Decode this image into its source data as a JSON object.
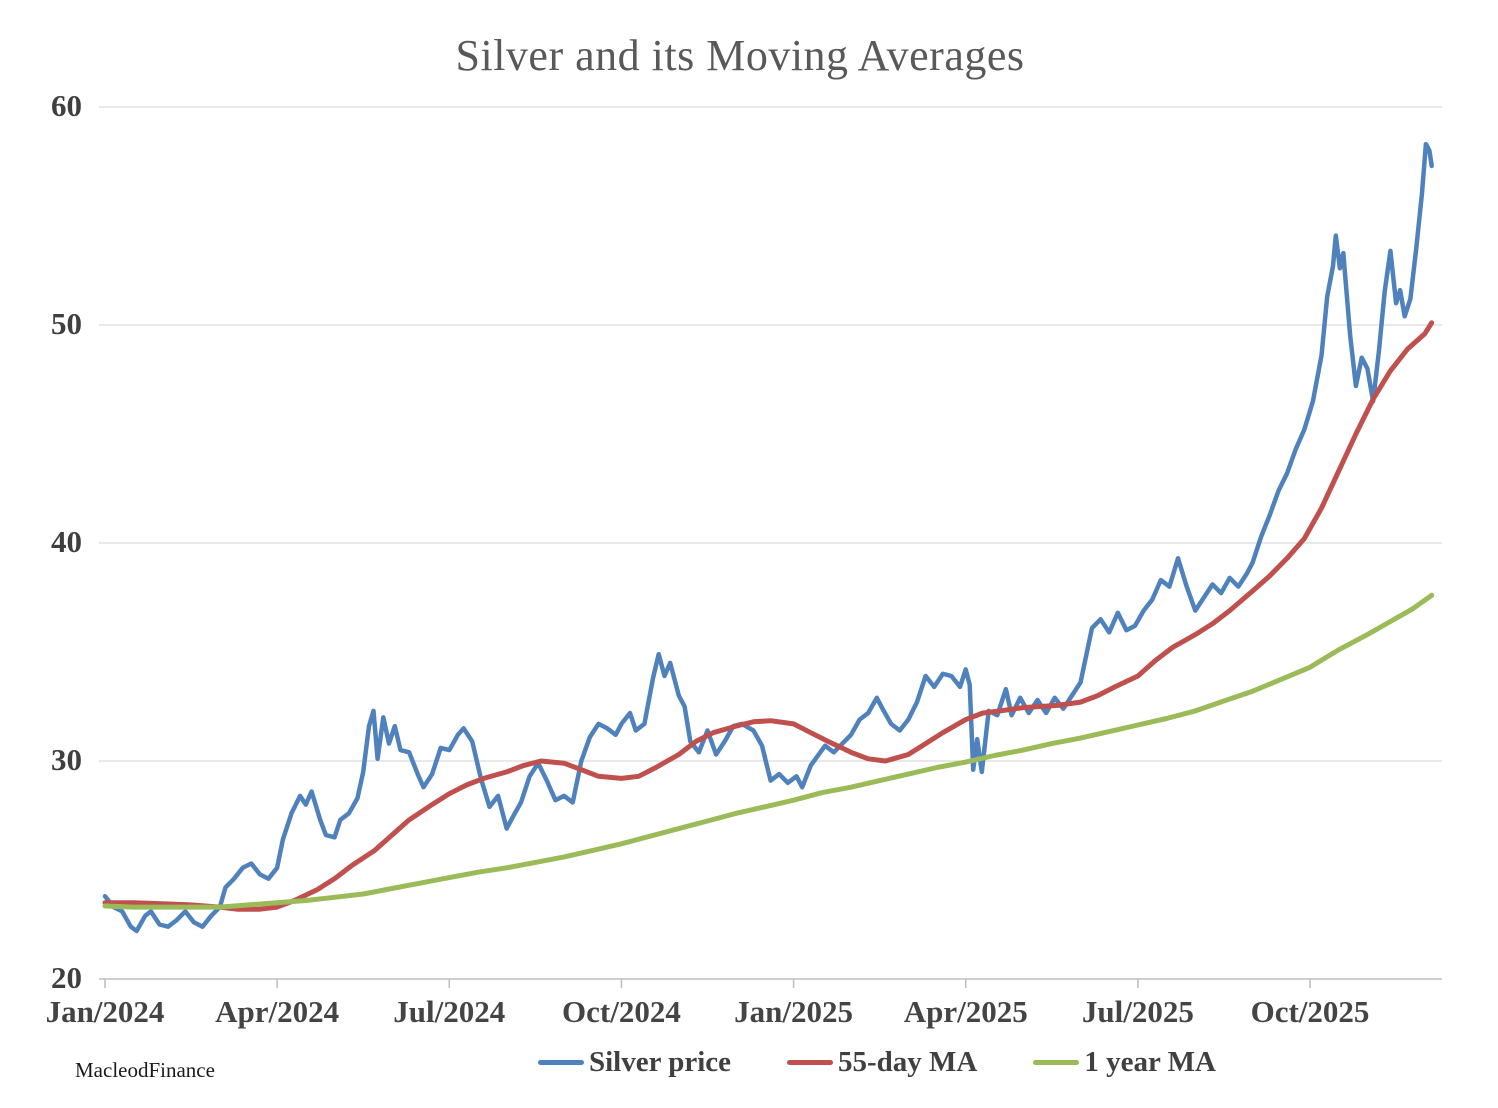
{
  "chart": {
    "title": "Silver and its Moving Averages",
    "watermark": "MacleodFinance",
    "colors": {
      "silver_price": "#4f81bd",
      "ma_55_day": "#c0504d",
      "ma_1_year": "#9bbb59",
      "gridline": "#d9d9d9",
      "axis_line": "#bfbfbf",
      "title_text": "#595959",
      "tick_text": "#3f3f3f"
    }
  },
  "chart_data": {
    "type": "line",
    "title": "Silver and its Moving Averages",
    "xlabel": "",
    "ylabel": "",
    "x_unit": "months since Jan 2024",
    "xlim": [
      0,
      23.3
    ],
    "ylim": [
      20,
      60
    ],
    "y_ticks": [
      20,
      30,
      40,
      50,
      60
    ],
    "x_ticks": [
      {
        "pos": 0,
        "label": "Jan/2024"
      },
      {
        "pos": 3,
        "label": "Apr/2024"
      },
      {
        "pos": 6,
        "label": "Jul/2024"
      },
      {
        "pos": 9,
        "label": "Oct/2024"
      },
      {
        "pos": 12,
        "label": "Jan/2025"
      },
      {
        "pos": 15,
        "label": "Apr/2025"
      },
      {
        "pos": 18,
        "label": "Jul/2025"
      },
      {
        "pos": 21,
        "label": "Oct/2025"
      }
    ],
    "grid": "horizontal-only",
    "legend_position": "bottom-center",
    "series": [
      {
        "name": "Silver price",
        "color": "#4f81bd",
        "width": 4.5,
        "points": [
          [
            0.0,
            23.8
          ],
          [
            0.15,
            23.3
          ],
          [
            0.3,
            23.1
          ],
          [
            0.45,
            22.4
          ],
          [
            0.55,
            22.2
          ],
          [
            0.7,
            22.9
          ],
          [
            0.8,
            23.1
          ],
          [
            0.95,
            22.5
          ],
          [
            1.1,
            22.4
          ],
          [
            1.25,
            22.7
          ],
          [
            1.4,
            23.1
          ],
          [
            1.55,
            22.6
          ],
          [
            1.7,
            22.4
          ],
          [
            1.85,
            22.9
          ],
          [
            2.0,
            23.3
          ],
          [
            2.1,
            24.2
          ],
          [
            2.25,
            24.6
          ],
          [
            2.4,
            25.1
          ],
          [
            2.55,
            25.3
          ],
          [
            2.7,
            24.8
          ],
          [
            2.85,
            24.6
          ],
          [
            3.0,
            25.1
          ],
          [
            3.1,
            26.4
          ],
          [
            3.25,
            27.6
          ],
          [
            3.4,
            28.4
          ],
          [
            3.5,
            28.0
          ],
          [
            3.6,
            28.6
          ],
          [
            3.75,
            27.3
          ],
          [
            3.85,
            26.6
          ],
          [
            4.0,
            26.5
          ],
          [
            4.1,
            27.3
          ],
          [
            4.25,
            27.6
          ],
          [
            4.4,
            28.3
          ],
          [
            4.5,
            29.5
          ],
          [
            4.6,
            31.6
          ],
          [
            4.68,
            32.3
          ],
          [
            4.75,
            30.1
          ],
          [
            4.85,
            32.0
          ],
          [
            4.95,
            30.8
          ],
          [
            5.05,
            31.6
          ],
          [
            5.15,
            30.5
          ],
          [
            5.3,
            30.4
          ],
          [
            5.45,
            29.4
          ],
          [
            5.55,
            28.8
          ],
          [
            5.7,
            29.4
          ],
          [
            5.85,
            30.6
          ],
          [
            6.0,
            30.5
          ],
          [
            6.15,
            31.2
          ],
          [
            6.25,
            31.5
          ],
          [
            6.4,
            30.9
          ],
          [
            6.55,
            29.2
          ],
          [
            6.7,
            27.9
          ],
          [
            6.85,
            28.4
          ],
          [
            7.0,
            26.9
          ],
          [
            7.1,
            27.4
          ],
          [
            7.25,
            28.1
          ],
          [
            7.4,
            29.3
          ],
          [
            7.55,
            29.9
          ],
          [
            7.7,
            29.1
          ],
          [
            7.85,
            28.2
          ],
          [
            8.0,
            28.4
          ],
          [
            8.15,
            28.1
          ],
          [
            8.3,
            30.0
          ],
          [
            8.45,
            31.1
          ],
          [
            8.6,
            31.7
          ],
          [
            8.75,
            31.5
          ],
          [
            8.9,
            31.2
          ],
          [
            9.0,
            31.7
          ],
          [
            9.15,
            32.2
          ],
          [
            9.25,
            31.4
          ],
          [
            9.4,
            31.7
          ],
          [
            9.55,
            33.8
          ],
          [
            9.65,
            34.9
          ],
          [
            9.75,
            33.9
          ],
          [
            9.85,
            34.5
          ],
          [
            10.0,
            33.0
          ],
          [
            10.1,
            32.5
          ],
          [
            10.2,
            30.9
          ],
          [
            10.35,
            30.4
          ],
          [
            10.5,
            31.4
          ],
          [
            10.65,
            30.3
          ],
          [
            10.8,
            30.9
          ],
          [
            10.95,
            31.6
          ],
          [
            11.1,
            31.7
          ],
          [
            11.3,
            31.4
          ],
          [
            11.45,
            30.7
          ],
          [
            11.6,
            29.1
          ],
          [
            11.75,
            29.4
          ],
          [
            11.9,
            29.0
          ],
          [
            12.05,
            29.3
          ],
          [
            12.15,
            28.8
          ],
          [
            12.3,
            29.8
          ],
          [
            12.55,
            30.7
          ],
          [
            12.7,
            30.4
          ],
          [
            12.85,
            30.8
          ],
          [
            13.0,
            31.2
          ],
          [
            13.15,
            31.9
          ],
          [
            13.3,
            32.2
          ],
          [
            13.45,
            32.9
          ],
          [
            13.55,
            32.4
          ],
          [
            13.7,
            31.7
          ],
          [
            13.85,
            31.4
          ],
          [
            14.0,
            31.9
          ],
          [
            14.15,
            32.7
          ],
          [
            14.3,
            33.9
          ],
          [
            14.45,
            33.4
          ],
          [
            14.6,
            34.0
          ],
          [
            14.75,
            33.9
          ],
          [
            14.9,
            33.4
          ],
          [
            15.0,
            34.2
          ],
          [
            15.07,
            33.5
          ],
          [
            15.13,
            29.6
          ],
          [
            15.2,
            31.0
          ],
          [
            15.28,
            29.5
          ],
          [
            15.4,
            32.3
          ],
          [
            15.55,
            32.1
          ],
          [
            15.7,
            33.3
          ],
          [
            15.8,
            32.1
          ],
          [
            15.95,
            32.9
          ],
          [
            16.1,
            32.2
          ],
          [
            16.25,
            32.8
          ],
          [
            16.4,
            32.2
          ],
          [
            16.55,
            32.9
          ],
          [
            16.7,
            32.4
          ],
          [
            16.85,
            33.0
          ],
          [
            17.0,
            33.6
          ],
          [
            17.08,
            34.6
          ],
          [
            17.2,
            36.1
          ],
          [
            17.35,
            36.5
          ],
          [
            17.5,
            35.9
          ],
          [
            17.65,
            36.8
          ],
          [
            17.8,
            36.0
          ],
          [
            17.95,
            36.2
          ],
          [
            18.1,
            36.9
          ],
          [
            18.25,
            37.4
          ],
          [
            18.4,
            38.3
          ],
          [
            18.55,
            38.0
          ],
          [
            18.7,
            39.3
          ],
          [
            18.85,
            38.0
          ],
          [
            19.0,
            36.9
          ],
          [
            19.15,
            37.5
          ],
          [
            19.3,
            38.1
          ],
          [
            19.45,
            37.7
          ],
          [
            19.6,
            38.4
          ],
          [
            19.75,
            38.0
          ],
          [
            19.9,
            38.6
          ],
          [
            20.0,
            39.1
          ],
          [
            20.15,
            40.3
          ],
          [
            20.3,
            41.3
          ],
          [
            20.45,
            42.4
          ],
          [
            20.6,
            43.2
          ],
          [
            20.75,
            44.3
          ],
          [
            20.9,
            45.2
          ],
          [
            21.05,
            46.5
          ],
          [
            21.2,
            48.6
          ],
          [
            21.3,
            51.3
          ],
          [
            21.4,
            52.7
          ],
          [
            21.45,
            54.1
          ],
          [
            21.52,
            52.6
          ],
          [
            21.58,
            53.3
          ],
          [
            21.7,
            49.5
          ],
          [
            21.8,
            47.2
          ],
          [
            21.9,
            48.5
          ],
          [
            22.0,
            48.0
          ],
          [
            22.1,
            46.5
          ],
          [
            22.2,
            48.8
          ],
          [
            22.3,
            51.5
          ],
          [
            22.4,
            53.4
          ],
          [
            22.5,
            51.0
          ],
          [
            22.57,
            51.6
          ],
          [
            22.65,
            50.4
          ],
          [
            22.75,
            51.2
          ],
          [
            22.85,
            53.5
          ],
          [
            22.95,
            56.0
          ],
          [
            23.02,
            58.3
          ],
          [
            23.08,
            58.0
          ],
          [
            23.12,
            57.3
          ]
        ]
      },
      {
        "name": "55-day MA",
        "color": "#c0504d",
        "width": 5,
        "points": [
          [
            0,
            23.5
          ],
          [
            0.5,
            23.5
          ],
          [
            1,
            23.45
          ],
          [
            1.5,
            23.4
          ],
          [
            2,
            23.3
          ],
          [
            2.3,
            23.2
          ],
          [
            2.7,
            23.2
          ],
          [
            3,
            23.3
          ],
          [
            3.3,
            23.6
          ],
          [
            3.7,
            24.1
          ],
          [
            4,
            24.6
          ],
          [
            4.3,
            25.2
          ],
          [
            4.7,
            25.9
          ],
          [
            5,
            26.6
          ],
          [
            5.3,
            27.3
          ],
          [
            5.7,
            28.0
          ],
          [
            6,
            28.5
          ],
          [
            6.3,
            28.9
          ],
          [
            6.6,
            29.2
          ],
          [
            7,
            29.5
          ],
          [
            7.3,
            29.8
          ],
          [
            7.6,
            30.0
          ],
          [
            8,
            29.9
          ],
          [
            8.3,
            29.6
          ],
          [
            8.6,
            29.3
          ],
          [
            9,
            29.2
          ],
          [
            9.3,
            29.3
          ],
          [
            9.6,
            29.7
          ],
          [
            10,
            30.3
          ],
          [
            10.3,
            30.9
          ],
          [
            10.6,
            31.3
          ],
          [
            11,
            31.6
          ],
          [
            11.3,
            31.8
          ],
          [
            11.6,
            31.85
          ],
          [
            12,
            31.7
          ],
          [
            12.3,
            31.3
          ],
          [
            12.6,
            30.9
          ],
          [
            13,
            30.4
          ],
          [
            13.3,
            30.1
          ],
          [
            13.6,
            30.0
          ],
          [
            14,
            30.3
          ],
          [
            14.3,
            30.8
          ],
          [
            14.6,
            31.3
          ],
          [
            15,
            31.9
          ],
          [
            15.3,
            32.2
          ],
          [
            15.6,
            32.3
          ],
          [
            16,
            32.45
          ],
          [
            16.3,
            32.5
          ],
          [
            16.6,
            32.55
          ],
          [
            17,
            32.7
          ],
          [
            17.3,
            33.0
          ],
          [
            17.6,
            33.4
          ],
          [
            18,
            33.9
          ],
          [
            18.3,
            34.6
          ],
          [
            18.6,
            35.2
          ],
          [
            19,
            35.8
          ],
          [
            19.3,
            36.3
          ],
          [
            19.6,
            36.9
          ],
          [
            20,
            37.8
          ],
          [
            20.3,
            38.5
          ],
          [
            20.6,
            39.3
          ],
          [
            20.9,
            40.2
          ],
          [
            21.2,
            41.6
          ],
          [
            21.5,
            43.3
          ],
          [
            21.8,
            45.0
          ],
          [
            22.1,
            46.6
          ],
          [
            22.4,
            47.9
          ],
          [
            22.7,
            48.9
          ],
          [
            23.0,
            49.6
          ],
          [
            23.12,
            50.1
          ]
        ]
      },
      {
        "name": "1 year MA",
        "color": "#9bbb59",
        "width": 5,
        "points": [
          [
            0,
            23.35
          ],
          [
            0.5,
            23.3
          ],
          [
            1,
            23.3
          ],
          [
            1.5,
            23.3
          ],
          [
            2,
            23.3
          ],
          [
            2.5,
            23.4
          ],
          [
            3,
            23.5
          ],
          [
            3.5,
            23.6
          ],
          [
            4,
            23.75
          ],
          [
            4.5,
            23.9
          ],
          [
            5,
            24.15
          ],
          [
            5.5,
            24.4
          ],
          [
            6,
            24.65
          ],
          [
            6.5,
            24.9
          ],
          [
            7,
            25.1
          ],
          [
            7.5,
            25.35
          ],
          [
            8,
            25.6
          ],
          [
            8.5,
            25.9
          ],
          [
            9,
            26.2
          ],
          [
            9.5,
            26.55
          ],
          [
            10,
            26.9
          ],
          [
            10.5,
            27.25
          ],
          [
            11,
            27.6
          ],
          [
            11.5,
            27.9
          ],
          [
            12,
            28.2
          ],
          [
            12.5,
            28.55
          ],
          [
            13,
            28.8
          ],
          [
            13.5,
            29.1
          ],
          [
            14,
            29.4
          ],
          [
            14.5,
            29.7
          ],
          [
            15,
            29.95
          ],
          [
            15.5,
            30.25
          ],
          [
            16,
            30.5
          ],
          [
            16.5,
            30.8
          ],
          [
            17,
            31.05
          ],
          [
            17.5,
            31.35
          ],
          [
            18,
            31.65
          ],
          [
            18.5,
            31.95
          ],
          [
            19,
            32.3
          ],
          [
            19.5,
            32.75
          ],
          [
            20,
            33.2
          ],
          [
            20.5,
            33.75
          ],
          [
            21,
            34.3
          ],
          [
            21.5,
            35.1
          ],
          [
            22,
            35.8
          ],
          [
            22.4,
            36.4
          ],
          [
            22.8,
            37.0
          ],
          [
            23.12,
            37.6
          ]
        ]
      }
    ]
  }
}
